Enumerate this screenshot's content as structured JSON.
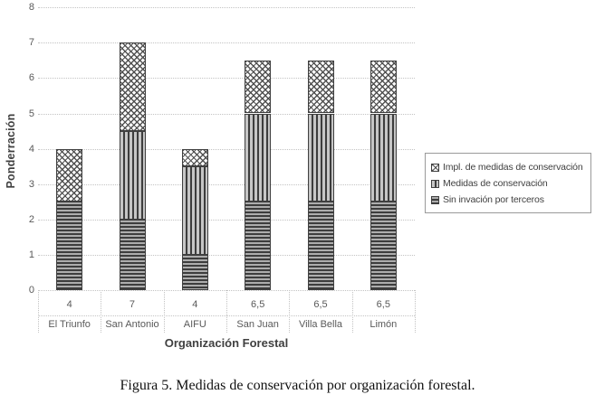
{
  "caption": "Figura 5. Medidas de conservación por organización forestal.",
  "colors": {
    "text_gray": "#595959",
    "axis_title_gray": "#404040",
    "gridline": "#c3c3c3",
    "bar_border": "#3f3f3f",
    "background": "#ffffff"
  },
  "chart_data": {
    "type": "bar",
    "stacked": true,
    "title": "",
    "xlabel": "Organización Forestal",
    "ylabel": "Ponderración",
    "ylim": [
      0,
      8
    ],
    "ytick_step": 1,
    "grid": "horizontal-dotted",
    "legend_position": "right",
    "categories": [
      "El Triunfo",
      "San Antonio",
      "AIFU",
      "San Juan",
      "Villa Bella",
      "Limón"
    ],
    "series": [
      {
        "name": "Sin invación por terceros",
        "pattern": "horizontal-stripes",
        "values": [
          2.5,
          2,
          1,
          2.5,
          2.5,
          2.5
        ]
      },
      {
        "name": "Medidas de conservación",
        "pattern": "vertical-stripes",
        "values": [
          0,
          2.5,
          2.5,
          2.5,
          2.5,
          2.5
        ]
      },
      {
        "name": "Impl. de medidas de conservación",
        "pattern": "diagonal-crosshatch",
        "values": [
          1.5,
          2.5,
          0.5,
          1.5,
          1.5,
          1.5
        ]
      }
    ],
    "category_total_labels": [
      "4",
      "7",
      "4",
      "6,5",
      "6,5",
      "6,5"
    ],
    "legend_items": [
      {
        "label": "Impl. de medidas de conservación",
        "swatch": "diagonal-crosshatch"
      },
      {
        "label": "Medidas de conservación",
        "swatch": "vertical-stripes"
      },
      {
        "label": "Sin invación por terceros",
        "swatch": "horizontal-stripes"
      }
    ]
  }
}
